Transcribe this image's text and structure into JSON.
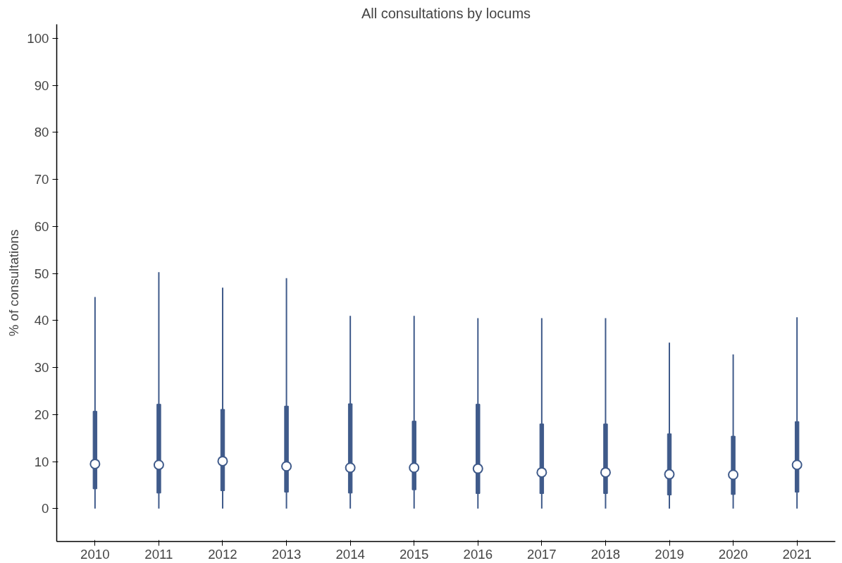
{
  "chart_data": {
    "type": "box",
    "title": "All consultations by locums",
    "ylabel": "% of consultations",
    "categories": [
      "2010",
      "2011",
      "2012",
      "2013",
      "2014",
      "2015",
      "2016",
      "2017",
      "2018",
      "2019",
      "2020",
      "2021"
    ],
    "series": [
      {
        "color": "#3f5a8a",
        "boxes": [
          {
            "low": 0,
            "q1": 4.2,
            "median": 9.5,
            "q3": 20.7,
            "high": 45
          },
          {
            "low": 0,
            "q1": 3.3,
            "median": 9.3,
            "q3": 22.2,
            "high": 50.3
          },
          {
            "low": 0,
            "q1": 3.8,
            "median": 10.1,
            "q3": 21.1,
            "high": 47
          },
          {
            "low": 0,
            "q1": 3.5,
            "median": 9.0,
            "q3": 21.8,
            "high": 49
          },
          {
            "low": 0,
            "q1": 3.3,
            "median": 8.7,
            "q3": 22.3,
            "high": 41
          },
          {
            "low": 0,
            "q1": 4.0,
            "median": 8.7,
            "q3": 18.6,
            "high": 41
          },
          {
            "low": 0,
            "q1": 3.2,
            "median": 8.5,
            "q3": 22.2,
            "high": 40.5
          },
          {
            "low": 0,
            "q1": 3.2,
            "median": 7.7,
            "q3": 18.0,
            "high": 40.5
          },
          {
            "low": 0,
            "q1": 3.2,
            "median": 7.7,
            "q3": 18.0,
            "high": 40.5
          },
          {
            "low": 0,
            "q1": 2.9,
            "median": 7.3,
            "q3": 15.9,
            "high": 35.3
          },
          {
            "low": 0,
            "q1": 3.0,
            "median": 7.2,
            "q3": 15.4,
            "high": 32.8
          },
          {
            "low": 0,
            "q1": 3.5,
            "median": 9.3,
            "q3": 18.5,
            "high": 40.7
          }
        ]
      }
    ],
    "ylim": [
      -7,
      103
    ],
    "yticks": [
      0,
      10,
      20,
      30,
      40,
      50,
      60,
      70,
      80,
      90,
      100
    ],
    "grid": false
  }
}
